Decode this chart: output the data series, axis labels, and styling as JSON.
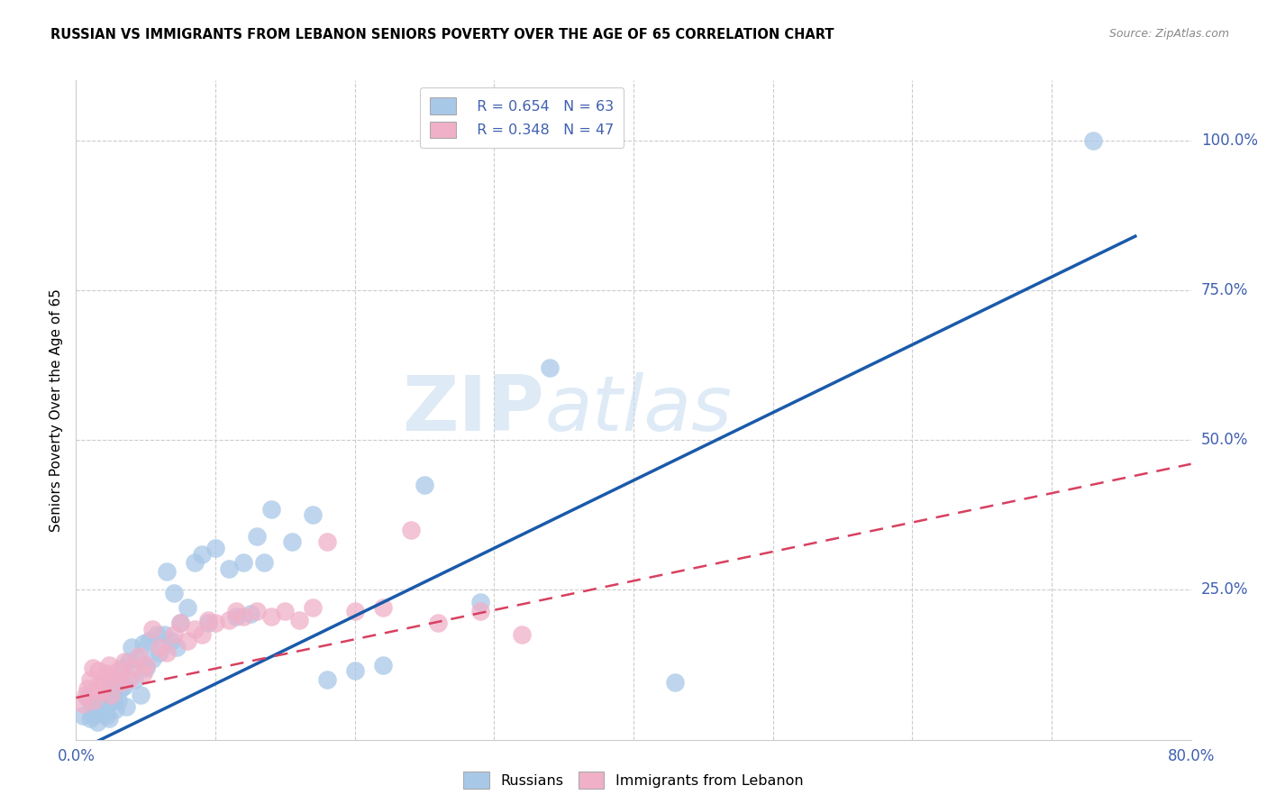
{
  "title": "RUSSIAN VS IMMIGRANTS FROM LEBANON SENIORS POVERTY OVER THE AGE OF 65 CORRELATION CHART",
  "source": "Source: ZipAtlas.com",
  "ylabel": "Seniors Poverty Over the Age of 65",
  "xlim": [
    0,
    0.8
  ],
  "ylim": [
    0,
    1.1
  ],
  "watermark_zip": "ZIP",
  "watermark_atlas": "atlas",
  "russian_color": "#a8c8e8",
  "lebanon_color": "#f0b0c8",
  "russian_line_color": "#1a5aaa",
  "lebanon_line_color": "#d84060",
  "background_color": "#ffffff",
  "grid_color": "#cccccc",
  "tick_color": "#4060b0",
  "ru_line_x0": 0.0,
  "ru_line_y0": -0.02,
  "ru_line_x1": 0.76,
  "ru_line_y1": 0.84,
  "lb_line_x0": 0.0,
  "lb_line_y0": 0.07,
  "lb_line_x1": 0.8,
  "lb_line_y1": 0.46,
  "russians_x": [
    0.005,
    0.008,
    0.01,
    0.01,
    0.012,
    0.013,
    0.015,
    0.015,
    0.017,
    0.018,
    0.02,
    0.021,
    0.022,
    0.023,
    0.024,
    0.025,
    0.027,
    0.028,
    0.03,
    0.03,
    0.032,
    0.033,
    0.035,
    0.036,
    0.038,
    0.04,
    0.042,
    0.044,
    0.046,
    0.048,
    0.05,
    0.052,
    0.055,
    0.058,
    0.06,
    0.063,
    0.065,
    0.068,
    0.07,
    0.072,
    0.075,
    0.08,
    0.085,
    0.09,
    0.095,
    0.1,
    0.11,
    0.115,
    0.12,
    0.125,
    0.13,
    0.135,
    0.14,
    0.155,
    0.17,
    0.18,
    0.2,
    0.22,
    0.25,
    0.29,
    0.34,
    0.43,
    0.73
  ],
  "russians_y": [
    0.04,
    0.07,
    0.035,
    0.065,
    0.04,
    0.055,
    0.045,
    0.03,
    0.06,
    0.05,
    0.045,
    0.075,
    0.04,
    0.06,
    0.035,
    0.085,
    0.065,
    0.05,
    0.095,
    0.065,
    0.085,
    0.12,
    0.09,
    0.055,
    0.13,
    0.155,
    0.1,
    0.135,
    0.075,
    0.16,
    0.12,
    0.165,
    0.135,
    0.175,
    0.145,
    0.175,
    0.28,
    0.165,
    0.245,
    0.155,
    0.195,
    0.22,
    0.295,
    0.31,
    0.195,
    0.32,
    0.285,
    0.205,
    0.295,
    0.21,
    0.34,
    0.295,
    0.385,
    0.33,
    0.375,
    0.1,
    0.115,
    0.125,
    0.425,
    0.23,
    0.62,
    0.095,
    1.0
  ],
  "lebanon_x": [
    0.005,
    0.007,
    0.008,
    0.01,
    0.012,
    0.013,
    0.015,
    0.016,
    0.018,
    0.02,
    0.022,
    0.024,
    0.025,
    0.027,
    0.03,
    0.032,
    0.035,
    0.038,
    0.04,
    0.045,
    0.048,
    0.05,
    0.055,
    0.06,
    0.065,
    0.07,
    0.075,
    0.08,
    0.085,
    0.09,
    0.095,
    0.1,
    0.11,
    0.115,
    0.12,
    0.13,
    0.14,
    0.15,
    0.16,
    0.17,
    0.18,
    0.2,
    0.22,
    0.24,
    0.26,
    0.29,
    0.32
  ],
  "lebanon_y": [
    0.06,
    0.075,
    0.085,
    0.1,
    0.12,
    0.065,
    0.09,
    0.115,
    0.08,
    0.095,
    0.11,
    0.125,
    0.075,
    0.105,
    0.115,
    0.095,
    0.13,
    0.1,
    0.12,
    0.14,
    0.11,
    0.125,
    0.185,
    0.155,
    0.145,
    0.175,
    0.195,
    0.165,
    0.185,
    0.175,
    0.2,
    0.195,
    0.2,
    0.215,
    0.205,
    0.215,
    0.205,
    0.215,
    0.2,
    0.22,
    0.33,
    0.215,
    0.22,
    0.35,
    0.195,
    0.215,
    0.175
  ]
}
